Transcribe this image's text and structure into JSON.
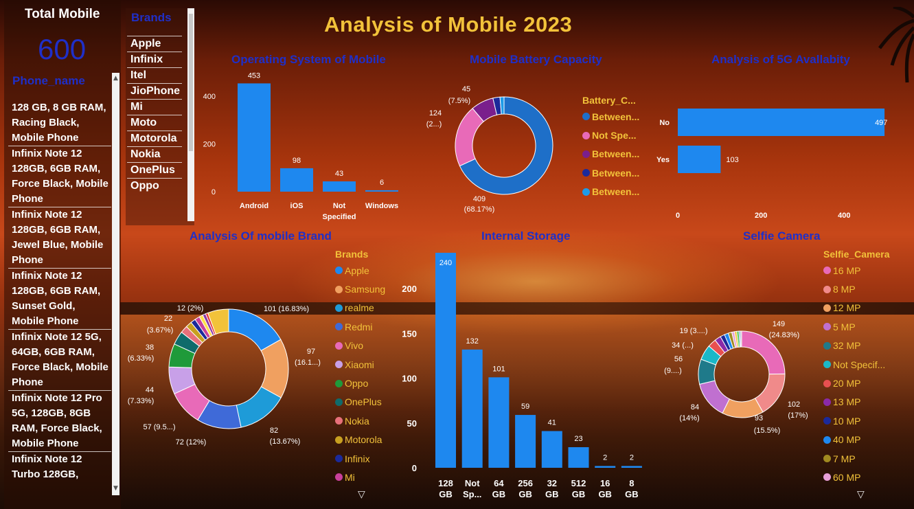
{
  "page": {
    "title": "Analysis of Mobile 2023",
    "total_label": "Total Mobile",
    "total_value": "600",
    "phone_header": "Phone_name",
    "brand_header": "Brands"
  },
  "phone_names": [
    "128 GB, 8 GB RAM, Racing Black, Mobile Phone",
    "Infinix Note 12 128GB, 6GB RAM, Force Black, Mobile Phone",
    "Infinix Note 12 128GB, 6GB RAM, Jewel Blue, Mobile Phone",
    "Infinix Note 12 128GB, 6GB RAM, Sunset Gold, Mobile Phone",
    "Infinix Note 12 5G, 64GB, 6GB RAM, Force Black, Mobile Phone",
    "Infinix Note 12 Pro 5G, 128GB, 8GB RAM, Force Black, Mobile Phone",
    "Infinix Note 12 Turbo 128GB,"
  ],
  "brand_slicer": [
    "Apple",
    "Infinix",
    "Itel",
    "JioPhone",
    "Mi",
    "Moto",
    "Motorola",
    "Nokia",
    "OnePlus",
    "Oppo"
  ],
  "colors": {
    "bar": "#1e88ef",
    "title_gold": "#f2c23a",
    "chart_title": "#1f2fc8"
  },
  "chart_data": [
    {
      "type": "bar",
      "title": "Operating System of Mobile",
      "categories": [
        "Android",
        "iOS",
        "Not Specified",
        "Windows"
      ],
      "values": [
        453,
        98,
        43,
        6
      ],
      "ylim": [
        0,
        480
      ],
      "yticks": [
        0,
        200,
        400
      ]
    },
    {
      "type": "pie",
      "title": "Mobile Battery Capacity",
      "legend_title": "Battery_C...",
      "legend": [
        "Between...",
        "Not Spe...",
        "Between...",
        "Between...",
        "Between..."
      ],
      "values": [
        409,
        124,
        45,
        14,
        8
      ],
      "labels": [
        "409",
        "124",
        "45",
        "",
        ""
      ],
      "percent_labels": [
        "(68.17%)",
        "(2...)",
        "(7.5%)",
        "",
        ""
      ],
      "colors": [
        "#1e6fc8",
        "#e86ab8",
        "#7a1f8c",
        "#1b2a9a",
        "#1e9be8"
      ]
    },
    {
      "type": "bar",
      "orientation": "horizontal",
      "title": "Analysis of 5G Avallabity",
      "categories": [
        "No",
        "Yes"
      ],
      "values": [
        497,
        103
      ],
      "xlim": [
        0,
        520
      ],
      "xticks": [
        0,
        200,
        400
      ]
    },
    {
      "type": "pie",
      "title": "Analysis Of mobile Brand",
      "legend_title": "Brands",
      "legend": [
        "Apple",
        "Samsung",
        "realme",
        "Redmi",
        "Vivo",
        "Xiaomi",
        "Oppo",
        "OnePlus",
        "Nokia",
        "Motorola",
        "Infinix",
        "Mi"
      ],
      "values": [
        101,
        97,
        82,
        72,
        57,
        44,
        38,
        22,
        12,
        10,
        8,
        8,
        6,
        5,
        4,
        34
      ],
      "labels": [
        "101 (16.83%)",
        "97 (16.1...)",
        "82 (13.67%)",
        "72 (12%)",
        "57 (9.5...)",
        "44 (7.33%)",
        "38 (6.33%)",
        "22 (3.67%)",
        "12 (2%)",
        "",
        "",
        "",
        "",
        "",
        "",
        ""
      ],
      "colors": [
        "#1e88ef",
        "#f0a060",
        "#1e9bd8",
        "#3f6ad8",
        "#e86ab8",
        "#c8a0e8",
        "#1f9a3a",
        "#0f6b6b",
        "#e8707a",
        "#c8a020",
        "#1b2a9a",
        "#c8409a",
        "#ffe04a",
        "#8a3aa8",
        "#e83838",
        "#f2c23a"
      ]
    },
    {
      "type": "bar",
      "title": "Internal Storage",
      "categories": [
        "128 GB",
        "Not Sp...",
        "64 GB",
        "256 GB",
        "32 GB",
        "512 GB",
        "16 GB",
        "8 GB"
      ],
      "values": [
        240,
        132,
        101,
        59,
        41,
        23,
        2,
        2
      ],
      "ylim": [
        0,
        240
      ],
      "yticks": [
        0,
        50,
        100,
        150,
        200
      ]
    },
    {
      "type": "pie",
      "title": "Selfie Camera",
      "legend_title": "Selfie_Camera",
      "legend": [
        "16 MP",
        "8 MP",
        "12 MP",
        "5 MP",
        "32 MP",
        "Not Specif...",
        "20 MP",
        "13 MP",
        "10 MP",
        "40 MP",
        "7 MP",
        "60 MP"
      ],
      "values": [
        149,
        102,
        93,
        84,
        56,
        34,
        19,
        14,
        10,
        9,
        8,
        6,
        5,
        5,
        3,
        3
      ],
      "labels": [
        "149 (24.83%)",
        "102 (17%)",
        "93 (15.5%)",
        "84 (14%)",
        "56 (9....)",
        "34 (...)",
        "19 (3....)",
        "",
        "",
        "",
        "",
        "",
        "",
        "",
        "",
        ""
      ],
      "colors": [
        "#e86ab8",
        "#f08a8a",
        "#f0a060",
        "#c070d0",
        "#1f7a8a",
        "#1ab8c8",
        "#e85050",
        "#8a2aa8",
        "#1b2a9a",
        "#1e88ef",
        "#a08a20",
        "#e8a0d8",
        "#f2c23a",
        "#50c850",
        "#3a6ad8",
        "#c0c0c0"
      ]
    }
  ]
}
